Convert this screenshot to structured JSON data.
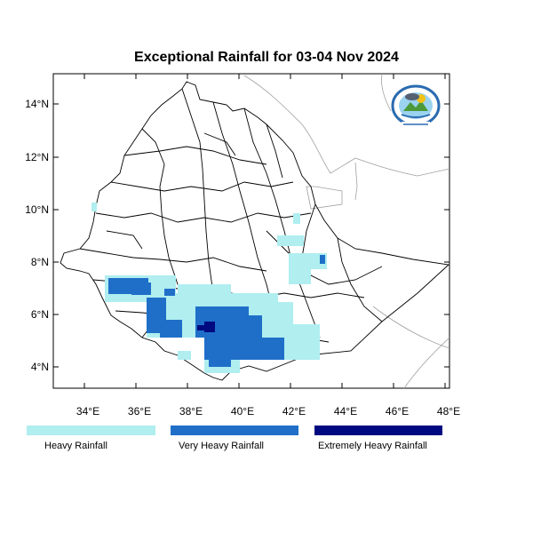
{
  "title": "Exceptional Rainfall for 03-04 Nov 2024",
  "map": {
    "lat_ticks": [
      "4°N",
      "6°N",
      "8°N",
      "10°N",
      "12°N",
      "14°N"
    ],
    "lon_ticks": [
      "34°E",
      "36°E",
      "38°E",
      "40°E",
      "42°E",
      "44°E",
      "46°E",
      "48°E"
    ],
    "extent": {
      "lon": [
        32.8,
        48.2
      ],
      "lat": [
        3.2,
        15.0
      ]
    }
  },
  "legend": {
    "items": [
      {
        "label": "Heavy Rainfall",
        "color": "#b0eef0"
      },
      {
        "label": "Very Heavy Rainfall",
        "color": "#1f6fc8"
      },
      {
        "label": "Extremely Heavy Rainfall",
        "color": "#000a80"
      }
    ]
  },
  "colors": {
    "border": "#000000",
    "neighbor": "#a0a0a0",
    "heavy": "#b0eef0",
    "very_heavy": "#1f6fc8",
    "extreme": "#000a80"
  },
  "logo": {
    "icon": "ethiopian-meteorology-institute-logo"
  }
}
